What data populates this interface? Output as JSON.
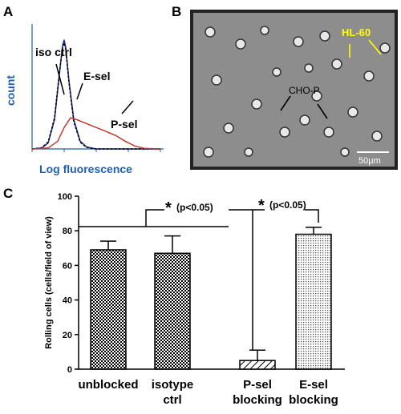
{
  "panel_labels": [
    "A",
    "B",
    "C"
  ],
  "micrograph": {
    "cell_labels": [
      "HL-60",
      "CHO-P"
    ],
    "scale_bar": "50μm"
  },
  "chart_data": [
    {
      "type": "line",
      "ylabel": "count",
      "xlabel": "Log fluorescence",
      "xlim": [
        0,
        4
      ],
      "ylim": [
        0,
        600
      ],
      "log_x": true,
      "series": [
        {
          "name": "iso ctrl",
          "color": "#1f2fa0",
          "dash": false,
          "x": [
            0,
            0.3,
            0.5,
            0.7,
            0.85,
            0.95,
            1.0,
            1.05,
            1.15,
            1.3,
            1.5,
            1.7,
            2.0,
            4
          ],
          "values": [
            0,
            5,
            30,
            150,
            380,
            530,
            560,
            520,
            350,
            150,
            40,
            10,
            0,
            0
          ]
        },
        {
          "name": "E-sel",
          "color": "#000000",
          "dash": true,
          "x": [
            0,
            0.3,
            0.5,
            0.7,
            0.85,
            0.95,
            1.0,
            1.05,
            1.15,
            1.3,
            1.5,
            1.7,
            2.0,
            4
          ],
          "values": [
            0,
            6,
            35,
            160,
            390,
            520,
            545,
            510,
            340,
            140,
            35,
            8,
            0,
            0
          ]
        },
        {
          "name": "P-sel",
          "color": "#c0392b",
          "dash": false,
          "x": [
            0,
            0.5,
            0.8,
            1.0,
            1.2,
            1.4,
            1.7,
            2.0,
            2.3,
            2.6,
            2.9,
            3.2,
            3.5,
            4
          ],
          "values": [
            0,
            5,
            40,
            110,
            160,
            150,
            130,
            110,
            90,
            70,
            40,
            15,
            3,
            0
          ]
        }
      ]
    },
    {
      "type": "bar",
      "ylabel": "Rolling cells (cells/field of view)",
      "categories": [
        "unblocked",
        "isotype ctrl",
        "P-sel blocking",
        "E-sel blocking"
      ],
      "values": [
        69,
        67,
        5,
        78
      ],
      "errors": [
        5,
        10,
        6,
        4
      ],
      "patterns": [
        "checker",
        "checker",
        "hatch",
        "dots"
      ],
      "ylim": [
        0,
        100
      ],
      "yticks": [
        0,
        20,
        40,
        60,
        80,
        100
      ],
      "annotations": [
        "*",
        "(p<0.05)",
        "*",
        "(p<0.05)"
      ]
    }
  ]
}
